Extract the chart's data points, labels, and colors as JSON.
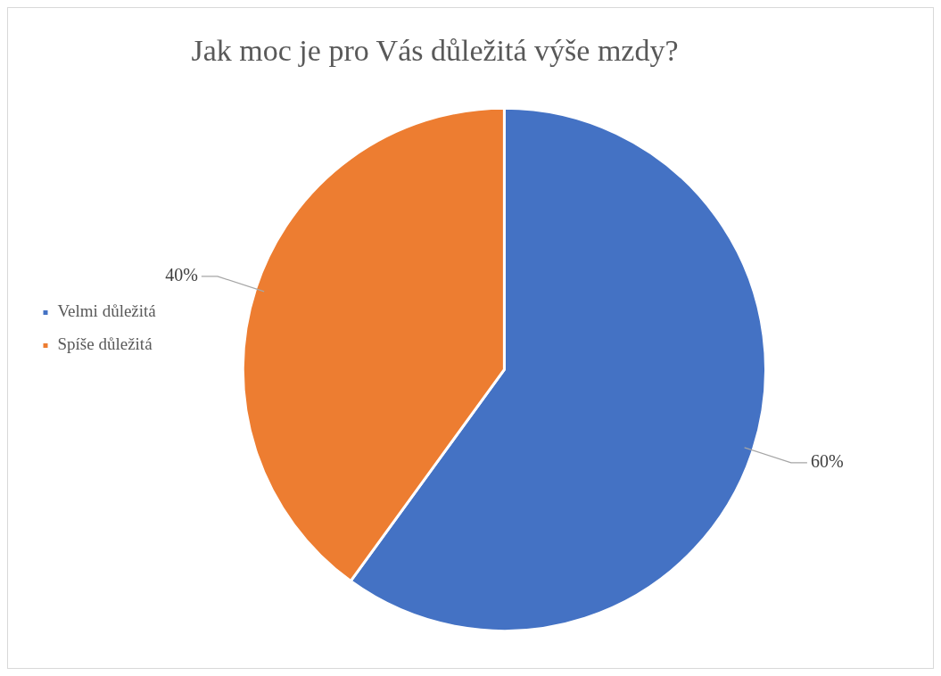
{
  "chart_data": {
    "type": "pie",
    "title": "Jak moc je pro Vás důležitá výše mzdy?",
    "categories": [
      "Velmi důležitá",
      "Spíše důležitá"
    ],
    "values": [
      60,
      40
    ],
    "colors": [
      "#4472c4",
      "#ed7d31"
    ],
    "value_labels": [
      "60%",
      "40%"
    ],
    "legend": "left"
  }
}
